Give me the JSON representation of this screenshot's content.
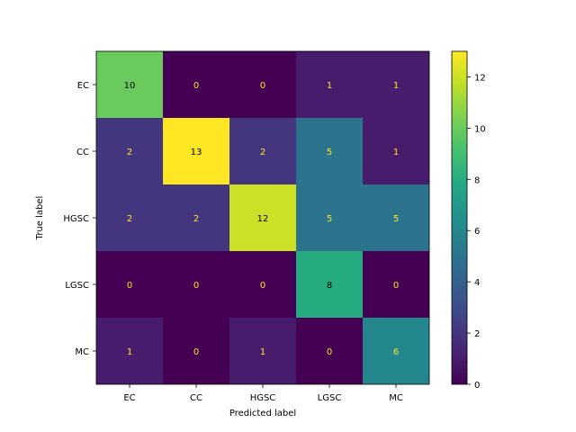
{
  "chart_data": {
    "type": "heatmap",
    "title": "",
    "xlabel": "Predicted label",
    "ylabel": "True label",
    "x_categories": [
      "EC",
      "CC",
      "HGSC",
      "LGSC",
      "MC"
    ],
    "y_categories": [
      "EC",
      "CC",
      "HGSC",
      "LGSC",
      "MC"
    ],
    "values": [
      [
        10,
        0,
        0,
        1,
        1
      ],
      [
        2,
        13,
        2,
        5,
        1
      ],
      [
        2,
        2,
        12,
        5,
        5
      ],
      [
        0,
        0,
        0,
        8,
        0
      ],
      [
        1,
        0,
        1,
        0,
        6
      ]
    ],
    "colorbar": {
      "min": 0,
      "max": 13,
      "ticks": [
        "0",
        "2",
        "4",
        "6",
        "8",
        "10",
        "12"
      ]
    },
    "colormap": "viridis",
    "text_color_dark_cells": "#fde725",
    "text_color_light_cells": "#000000",
    "grid": false
  }
}
